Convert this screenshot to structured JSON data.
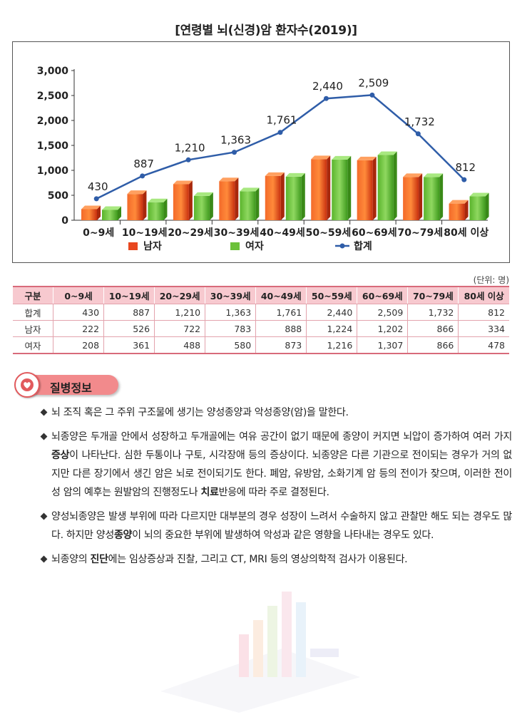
{
  "chart_data": {
    "type": "bar",
    "title": "[연령별 뇌(신경)암 환자수(2019)]",
    "categories": [
      "0~9세",
      "10~19세",
      "20~29세",
      "30~39세",
      "40~49세",
      "50~59세",
      "60~69세",
      "70~79세",
      "80세 이상"
    ],
    "series": [
      {
        "name": "남자",
        "type": "bar",
        "color": "#e8471f",
        "values": [
          222,
          526,
          722,
          783,
          888,
          1224,
          1202,
          866,
          334
        ]
      },
      {
        "name": "여자",
        "type": "bar",
        "color": "#6cc13a",
        "values": [
          208,
          361,
          488,
          580,
          873,
          1216,
          1307,
          866,
          478
        ]
      },
      {
        "name": "합계",
        "type": "line",
        "color": "#2f5da8",
        "values": [
          430,
          887,
          1210,
          1363,
          1761,
          2440,
          2509,
          1732,
          812
        ]
      }
    ],
    "total_labels": [
      "430",
      "887",
      "1,210",
      "1,363",
      "1,761",
      "2,440",
      "2,509",
      "1,732",
      "812"
    ],
    "yticks": [
      "0",
      "500",
      "1,000",
      "1,500",
      "2,000",
      "2,500",
      "3,000"
    ],
    "ylim": [
      0,
      3000
    ],
    "legend_position": "bottom",
    "grid": false
  },
  "table": {
    "unit": "(단위: 명)",
    "headers": [
      "구분",
      "0~9세",
      "10~19세",
      "20~29세",
      "30~39세",
      "40~49세",
      "50~59세",
      "60~69세",
      "70~79세",
      "80세 이상"
    ],
    "rows": [
      [
        "합계",
        "430",
        "887",
        "1,210",
        "1,363",
        "1,761",
        "2,440",
        "2,509",
        "1,732",
        "812"
      ],
      [
        "남자",
        "222",
        "526",
        "722",
        "783",
        "888",
        "1,224",
        "1,202",
        "866",
        "334"
      ],
      [
        "여자",
        "208",
        "361",
        "488",
        "580",
        "873",
        "1,216",
        "1,307",
        "866",
        "478"
      ]
    ]
  },
  "section": {
    "title": "질병정보",
    "icon": "heart-icon"
  },
  "bullets": [
    [
      {
        "t": "뇌 조직 혹은 그 주위 구조물에 생기는 양성종양과 악성종양(암)을 말한다."
      }
    ],
    [
      {
        "t": "뇌종양은 두개골 안에서 성장하고 두개골에는 여유 공간이 없기 때문에 종양이 커지면 뇌압이 증가하여 여러 가지 "
      },
      {
        "t": "증상",
        "b": true
      },
      {
        "t": "이 나타난다. 심한 두통이나 구토, 시각장애 등의 증상이다. 뇌종양은 다른 기관으로 전이되는 경우가 거의 없지만 다른 장기에서 생긴 암은 뇌로 전이되기도 한다. 폐암, 유방암, 소화기계 암 등의 전이가 잦으며, 이러한 전이성 암의 예후는 원발암의 진행정도나 "
      },
      {
        "t": "치료",
        "b": true
      },
      {
        "t": "반응에 따라 주로 결정된다."
      }
    ],
    [
      {
        "t": "양성뇌종양은 발생 부위에 따라 다르지만 대부분의 경우 성장이 느려서 수술하지 않고 관찰만 해도 되는 경우도 많다. 하지만 양성"
      },
      {
        "t": "종양",
        "b": true
      },
      {
        "t": "이 뇌의 중요한 부위에 발생하여 악성과 같은 영향을 나타내는 경우도 있다."
      }
    ],
    [
      {
        "t": "뇌종양의 "
      },
      {
        "t": "진단",
        "b": true
      },
      {
        "t": "에는 임상증상과 진찰, 그리고 CT, MRI 등의 영상의학적 검사가 이용된다."
      }
    ]
  ]
}
